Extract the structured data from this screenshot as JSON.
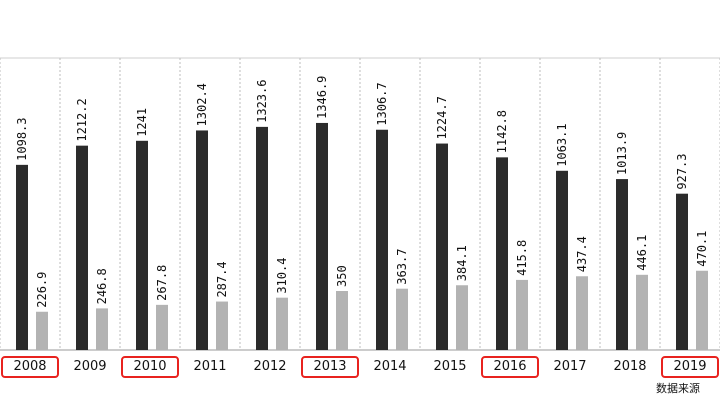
{
  "chart_data": {
    "type": "bar",
    "categories": [
      "2008",
      "2009",
      "2010",
      "2011",
      "2012",
      "2013",
      "2014",
      "2015",
      "2016",
      "2017",
      "2018",
      "2019"
    ],
    "series": [
      {
        "values": [
          1098.3,
          1212.2,
          1241,
          1302.4,
          1323.6,
          1346.9,
          1306.7,
          1224.7,
          1142.8,
          1063.1,
          1013.9,
          927.3
        ]
      },
      {
        "values": [
          226.9,
          246.8,
          267.8,
          287.4,
          310.4,
          350,
          363.7,
          384.1,
          415.8,
          437.4,
          446.1,
          470.1
        ]
      }
    ],
    "value_labels": [
      [
        "1098.3",
        "1212.2",
        "1241",
        "1302.4",
        "1323.6",
        "1346.9",
        "1306.7",
        "1224.7",
        "1142.8",
        "1063.1",
        "1013.9",
        "927.3"
      ],
      [
        "226.9",
        "246.8",
        "267.8",
        "287.4",
        "310.4",
        "350",
        "363.7",
        "384.1",
        "415.8",
        "437.4",
        "446.1",
        "470.1"
      ]
    ],
    "highlighted_categories": [
      "2008",
      "2010",
      "2013",
      "2016",
      "2019"
    ],
    "colors": {
      "series_dark": "#2b2b2b",
      "series_light": "#b3b3b3",
      "highlight_box": "#e8231f",
      "gridline": "#bdbdbd"
    },
    "ylim": [
      0,
      1400
    ],
    "grid": true,
    "legend": "none"
  },
  "source_note": "数据来源"
}
